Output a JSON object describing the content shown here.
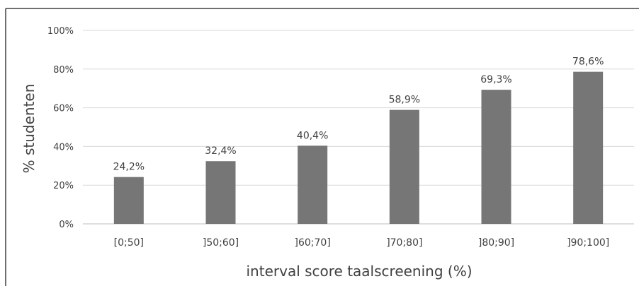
{
  "chart_data": {
    "type": "bar",
    "title": "",
    "xlabel": "interval score taalscreening (%)",
    "ylabel": "% studenten",
    "categories": [
      "[0;50]",
      "]50;60]",
      "]60;70]",
      "]70;80]",
      "]80;90]",
      "]90;100]"
    ],
    "values": [
      24.2,
      32.4,
      40.4,
      58.9,
      69.3,
      78.6
    ],
    "value_labels": [
      "24,2%",
      "32,4%",
      "40,4%",
      "58,9%",
      "69,3%",
      "78,6%"
    ],
    "ylim": [
      0,
      100
    ],
    "yticks": [
      0,
      20,
      40,
      60,
      80,
      100
    ],
    "ytick_labels": [
      "0%",
      "20%",
      "40%",
      "60%",
      "80%",
      "100%"
    ],
    "grid": true,
    "legend": "none",
    "colors": {
      "bar": "#767676",
      "grid": "#d9d9d9",
      "frame": "#404040",
      "text": "#404040"
    }
  }
}
